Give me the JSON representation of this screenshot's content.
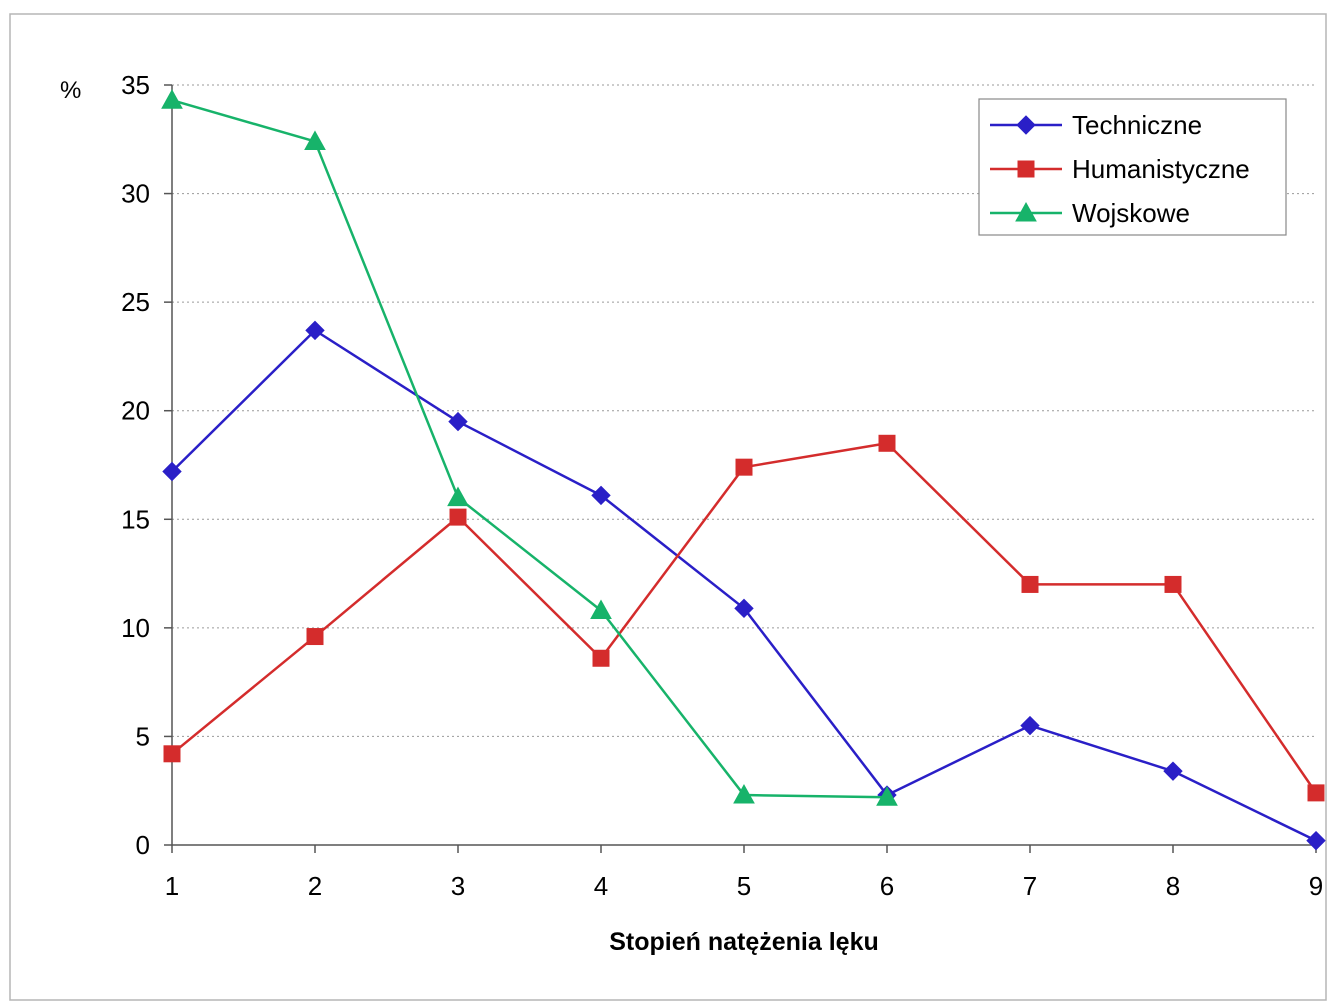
{
  "chart_data": {
    "type": "line",
    "title": "",
    "xlabel": "Stopień natężenia lęku",
    "ylabel": "%",
    "x": [
      1,
      2,
      3,
      4,
      5,
      6,
      7,
      8,
      9
    ],
    "ylim": [
      0,
      35
    ],
    "yticks": [
      0,
      5,
      10,
      15,
      20,
      25,
      30,
      35
    ],
    "grid": true,
    "legend_position": "top-right",
    "series": [
      {
        "name": "Techniczne",
        "color": "#2a1fc7",
        "marker": "diamond",
        "x": [
          1,
          2,
          3,
          4,
          5,
          6,
          7,
          8,
          9
        ],
        "values": [
          17.2,
          23.7,
          19.5,
          16.1,
          10.9,
          2.3,
          5.5,
          3.4,
          0.2
        ]
      },
      {
        "name": "Humanistyczne",
        "color": "#d42c2c",
        "marker": "square",
        "x": [
          1,
          2,
          3,
          4,
          5,
          6,
          7,
          8,
          9
        ],
        "values": [
          4.2,
          9.6,
          15.1,
          8.6,
          17.4,
          18.5,
          12.0,
          12.0,
          2.4
        ]
      },
      {
        "name": "Wojskowe",
        "color": "#17b36a",
        "marker": "triangle",
        "x": [
          1,
          2,
          3,
          4,
          5,
          6
        ],
        "values": [
          34.3,
          32.4,
          16.0,
          10.8,
          2.3,
          2.2
        ]
      }
    ]
  }
}
